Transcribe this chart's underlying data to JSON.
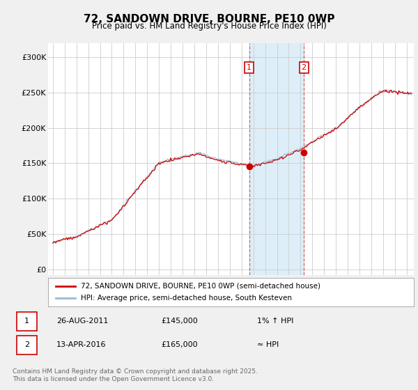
{
  "title": "72, SANDOWN DRIVE, BOURNE, PE10 0WP",
  "subtitle": "Price paid vs. HM Land Registry's House Price Index (HPI)",
  "ylabel_ticks": [
    "£0",
    "£50K",
    "£100K",
    "£150K",
    "£200K",
    "£250K",
    "£300K"
  ],
  "ytick_vals": [
    0,
    50000,
    100000,
    150000,
    200000,
    250000,
    300000
  ],
  "ylim": [
    -8000,
    320000
  ],
  "xlim_start": 1994.6,
  "xlim_end": 2025.6,
  "sale1_year": 2011.65,
  "sale1_price": 145000,
  "sale1_label": "1",
  "sale2_year": 2016.28,
  "sale2_price": 165000,
  "sale2_label": "2",
  "highlight_start": 2011.65,
  "highlight_end": 2016.28,
  "line_color_property": "#cc0000",
  "line_color_hpi": "#9bb8d0",
  "dashed_line_color": "#cc6666",
  "annotation_box_color": "#cc0000",
  "highlight_color": "#ddeef8",
  "legend_label_property": "72, SANDOWN DRIVE, BOURNE, PE10 0WP (semi-detached house)",
  "legend_label_hpi": "HPI: Average price, semi-detached house, South Kesteven",
  "footnote": "Contains HM Land Registry data © Crown copyright and database right 2025.\nThis data is licensed under the Open Government Licence v3.0.",
  "table_row1": [
    "1",
    "26-AUG-2011",
    "£145,000",
    "1% ↑ HPI"
  ],
  "table_row2": [
    "2",
    "13-APR-2016",
    "£165,000",
    "≈ HPI"
  ],
  "plot_bg_color": "#ffffff",
  "fig_bg_color": "#f0f0f0",
  "grid_color": "#cccccc",
  "seed": 17
}
